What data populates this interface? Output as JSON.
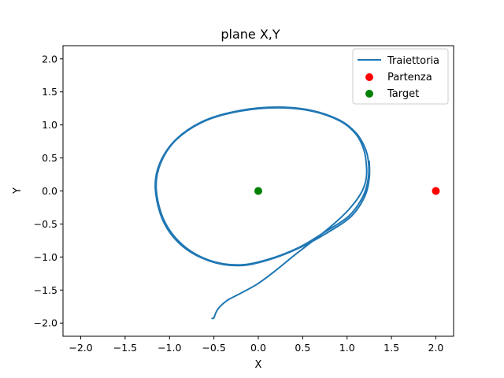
{
  "chart_data": {
    "type": "line",
    "title": "plane X,Y",
    "xlabel": "X",
    "ylabel": "Y",
    "xlim": [
      -2.2,
      2.2
    ],
    "ylim": [
      -2.2,
      2.2
    ],
    "xticks": [
      -2.0,
      -1.5,
      -1.0,
      -0.5,
      0.0,
      0.5,
      1.0,
      1.5,
      2.0
    ],
    "yticks": [
      -2.0,
      -1.5,
      -1.0,
      -0.5,
      0.0,
      0.5,
      1.0,
      1.5,
      2.0
    ],
    "xtick_labels": [
      "−2.0",
      "−1.5",
      "−1.0",
      "−0.5",
      "0.0",
      "0.5",
      "1.0",
      "1.5",
      "2.0"
    ],
    "ytick_labels": [
      "−2.0",
      "−1.5",
      "−1.0",
      "−0.5",
      "0.0",
      "0.5",
      "1.0",
      "1.5",
      "2.0"
    ],
    "grid": false,
    "legend_position": "top-right",
    "series": [
      {
        "name": "Traiettoria",
        "kind": "line",
        "color": "#1f77b4",
        "passes": [
          [
            [
              -0.52,
              -1.93
            ],
            [
              -0.5,
              -1.92
            ],
            [
              -0.48,
              -1.85
            ],
            [
              -0.45,
              -1.78
            ],
            [
              -0.4,
              -1.71
            ],
            [
              -0.33,
              -1.64
            ],
            [
              -0.2,
              -1.55
            ],
            [
              0.0,
              -1.4
            ],
            [
              0.2,
              -1.2
            ],
            [
              0.4,
              -0.98
            ],
            [
              0.65,
              -0.72
            ],
            [
              0.85,
              -0.5
            ],
            [
              1.02,
              -0.28
            ],
            [
              1.15,
              -0.05
            ],
            [
              1.21,
              0.15
            ],
            [
              1.22,
              0.35
            ],
            [
              1.19,
              0.62
            ],
            [
              1.1,
              0.86
            ],
            [
              0.92,
              1.06
            ],
            [
              0.6,
              1.21
            ],
            [
              0.22,
              1.26
            ],
            [
              -0.2,
              1.21
            ],
            [
              -0.6,
              1.06
            ],
            [
              -0.92,
              0.78
            ],
            [
              -1.1,
              0.42
            ],
            [
              -1.15,
              0.03
            ],
            [
              -1.06,
              -0.45
            ],
            [
              -0.85,
              -0.82
            ],
            [
              -0.55,
              -1.05
            ],
            [
              -0.22,
              -1.12
            ],
            [
              0.1,
              -1.04
            ],
            [
              0.45,
              -0.86
            ],
            [
              0.75,
              -0.62
            ],
            [
              1.02,
              -0.38
            ],
            [
              1.18,
              -0.08
            ],
            [
              1.24,
              0.2
            ],
            [
              1.24,
              0.45
            ],
            [
              1.2,
              0.66
            ],
            [
              1.1,
              0.88
            ],
            [
              0.92,
              1.07
            ],
            [
              0.6,
              1.22
            ],
            [
              0.22,
              1.27
            ],
            [
              -0.2,
              1.22
            ],
            [
              -0.6,
              1.07
            ],
            [
              -0.92,
              0.79
            ],
            [
              -1.11,
              0.42
            ],
            [
              -1.16,
              0.03
            ],
            [
              -1.07,
              -0.46
            ],
            [
              -0.86,
              -0.83
            ],
            [
              -0.55,
              -1.06
            ],
            [
              -0.22,
              -1.13
            ],
            [
              0.1,
              -1.05
            ],
            [
              0.45,
              -0.87
            ],
            [
              0.78,
              -0.63
            ],
            [
              1.05,
              -0.38
            ],
            [
              1.2,
              -0.08
            ],
            [
              1.25,
              0.2
            ],
            [
              1.25,
              0.45
            ]
          ]
        ]
      },
      {
        "name": "Partenza",
        "kind": "point",
        "color": "#ff0000",
        "points": [
          [
            2.0,
            0.0
          ]
        ]
      },
      {
        "name": "Target",
        "kind": "point",
        "color": "#008000",
        "points": [
          [
            0.0,
            0.0
          ]
        ]
      }
    ]
  }
}
